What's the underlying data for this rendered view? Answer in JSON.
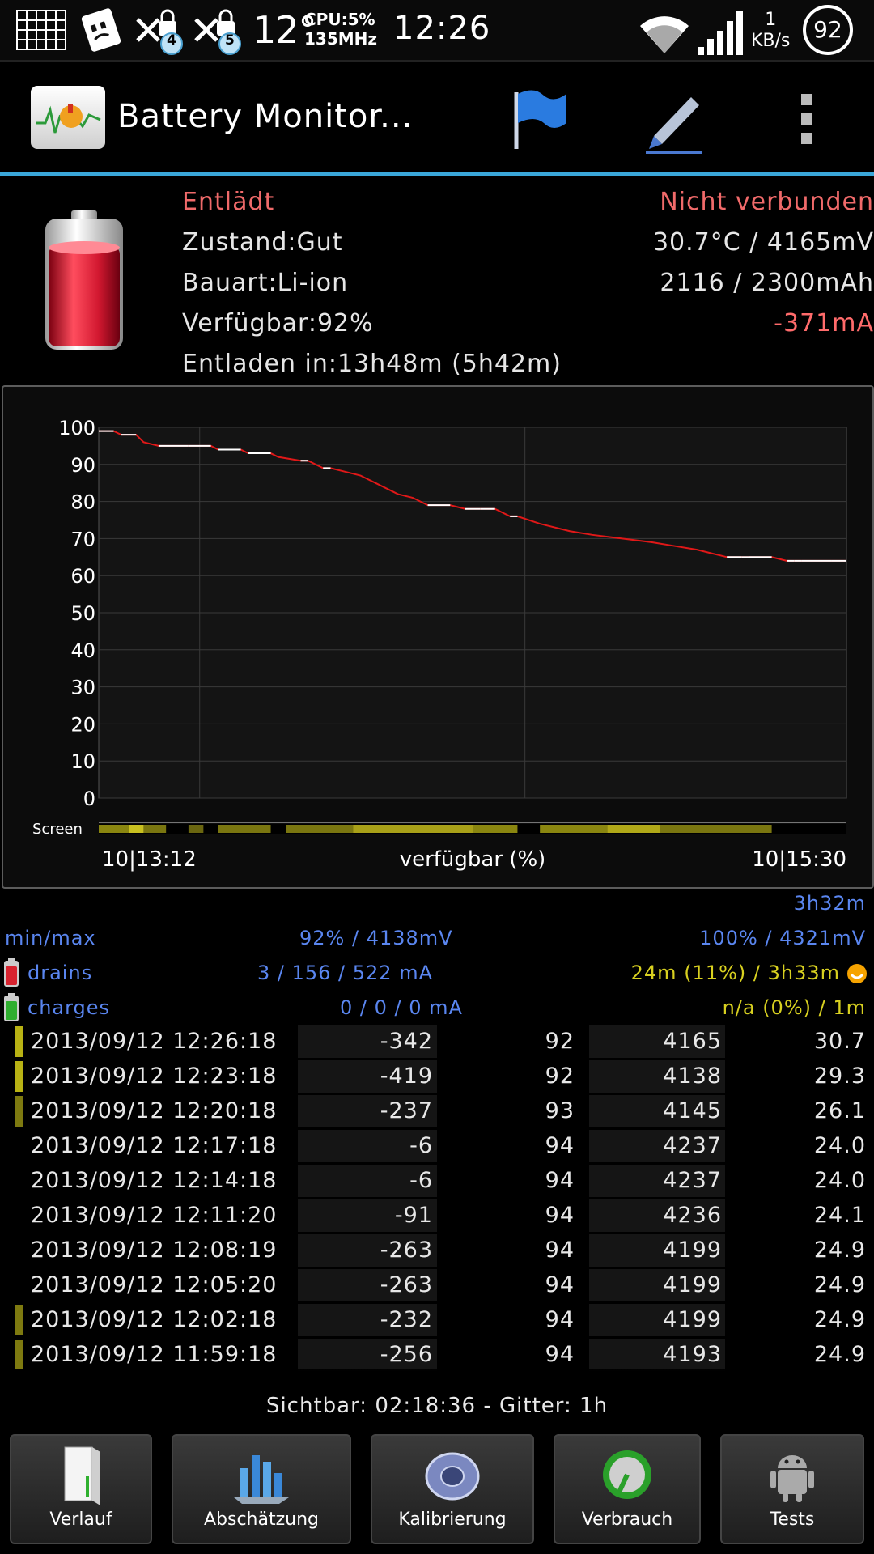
{
  "statusbar": {
    "notif_count_1": "4",
    "notif_count_2": "5",
    "temperature": "12°",
    "cpu_line1": "CPU:5%",
    "cpu_line2": "135MHz",
    "clock": "12:26",
    "net_value": "1",
    "net_unit": "KB/s",
    "battery_ring": "92"
  },
  "actionbar": {
    "title": "Battery Monitor...",
    "accent": "#3aa7d9"
  },
  "battery": {
    "state": "Entlädt",
    "connection": "Nicht verbunden",
    "health": "Zustand:Gut",
    "temp_voltage": "30.7°C / 4165mV",
    "type": "Bauart:Li-ion",
    "capacity": "2116 / 2300mAh",
    "available": "Verfügbar:92%",
    "current": "-371mA",
    "discharge_time": "Entladen in:13h48m (5h42m)"
  },
  "chart_data": {
    "type": "line",
    "y_ticks": [
      "100",
      "90",
      "80",
      "70",
      "60",
      "50",
      "40",
      "30",
      "20",
      "10",
      "0"
    ],
    "ylim": [
      0,
      100
    ],
    "x_start_label": "10|13:12",
    "x_end_label": "10|15:30",
    "xlabel": "verfügbar (%)",
    "screen_label": "Screen",
    "series": [
      {
        "color": "#e01818",
        "x": [
          0,
          2,
          3,
          5,
          6,
          8,
          12,
          15,
          16,
          19,
          20,
          23,
          24,
          27,
          28,
          30,
          31,
          33,
          35,
          37,
          40,
          42,
          44,
          47,
          49,
          51,
          53,
          55,
          56,
          59,
          63,
          66,
          70,
          74,
          77,
          80,
          82,
          84,
          86,
          87,
          90,
          92,
          93,
          94,
          96,
          98,
          100
        ],
        "values": [
          99,
          99,
          98,
          98,
          96,
          95,
          95,
          95,
          94,
          94,
          93,
          93,
          92,
          91,
          91,
          89,
          89,
          88,
          87,
          85,
          82,
          81,
          79,
          79,
          78,
          78,
          78,
          76,
          76,
          74,
          72,
          71,
          70,
          69,
          68,
          67,
          66,
          65,
          65,
          65,
          65,
          64,
          64,
          64,
          64,
          64,
          64
        ]
      }
    ]
  },
  "stats": {
    "duration": "3h32m",
    "minmax_label": "min/max",
    "min_value": "92% / 4138mV",
    "max_value": "100% / 4321mV",
    "drains_label": "drains",
    "drains_value": "3 / 156 / 522 mA",
    "drains_time": "24m (11%) / 3h33m",
    "charges_label": "charges",
    "charges_value": "0 / 0 / 0 mA",
    "charges_time": "n/a (0%) / 1m"
  },
  "log": [
    {
      "ts": "2013/09/12  12:26:18",
      "ma": "-342",
      "pct": "92",
      "mv": "4165",
      "temp": "30.7",
      "mark": "#b8b214"
    },
    {
      "ts": "2013/09/12  12:23:18",
      "ma": "-419",
      "pct": "92",
      "mv": "4138",
      "temp": "29.3",
      "mark": "#b8b214"
    },
    {
      "ts": "2013/09/12  12:20:18",
      "ma": "-237",
      "pct": "93",
      "mv": "4145",
      "temp": "26.1",
      "mark": "#7e7a10"
    },
    {
      "ts": "2013/09/12  12:17:18",
      "ma": "-6",
      "pct": "94",
      "mv": "4237",
      "temp": "24.0",
      "mark": ""
    },
    {
      "ts": "2013/09/12  12:14:18",
      "ma": "-6",
      "pct": "94",
      "mv": "4237",
      "temp": "24.0",
      "mark": ""
    },
    {
      "ts": "2013/09/12  12:11:20",
      "ma": "-91",
      "pct": "94",
      "mv": "4236",
      "temp": "24.1",
      "mark": ""
    },
    {
      "ts": "2013/09/12  12:08:19",
      "ma": "-263",
      "pct": "94",
      "mv": "4199",
      "temp": "24.9",
      "mark": ""
    },
    {
      "ts": "2013/09/12  12:05:20",
      "ma": "-263",
      "pct": "94",
      "mv": "4199",
      "temp": "24.9",
      "mark": ""
    },
    {
      "ts": "2013/09/12  12:02:18",
      "ma": "-232",
      "pct": "94",
      "mv": "4199",
      "temp": "24.9",
      "mark": "#7e7a10"
    },
    {
      "ts": "2013/09/12  11:59:18",
      "ma": "-256",
      "pct": "94",
      "mv": "4193",
      "temp": "24.9",
      "mark": "#7e7a10"
    }
  ],
  "footer": "Sichtbar: 02:18:36 - Gitter: 1h",
  "nav": [
    {
      "label": "Verlauf",
      "icon": "door-icon"
    },
    {
      "label": "Abschätzung",
      "icon": "bar-chart-icon"
    },
    {
      "label": "Kalibrierung",
      "icon": "disc-icon"
    },
    {
      "label": "Verbrauch",
      "icon": "gauge-icon"
    },
    {
      "label": "Tests",
      "icon": "android-icon"
    }
  ]
}
